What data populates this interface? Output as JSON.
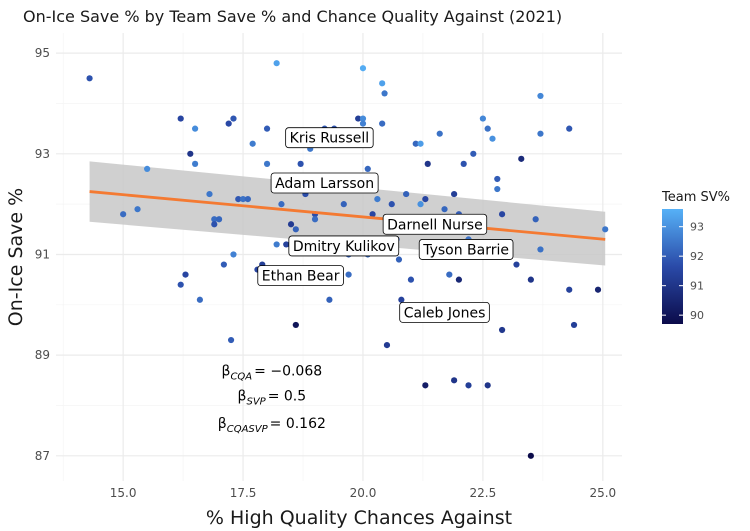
{
  "colors": {
    "low": "#0b0b4a",
    "mid": "#2a4aa8",
    "high": "#56b1f7",
    "trend": "#f47a32",
    "band": "#c8c8c8",
    "grid_major": "#ebebeb",
    "grid_minor": "#f4f4f4"
  },
  "chart_data": {
    "type": "scatter",
    "title": "On-Ice Save % by Team Save % and Chance Quality Against (2021)",
    "xlabel": "% High Quality Chances Against",
    "ylabel": "On-Ice Save %",
    "xlim": [
      13.6,
      25.4
    ],
    "ylim": [
      86.5,
      95.4
    ],
    "x_ticks": [
      15.0,
      17.5,
      20.0,
      22.5,
      25.0
    ],
    "x_tick_labels": [
      "15.0",
      "17.5",
      "20.0",
      "22.5",
      "25.0"
    ],
    "y_ticks": [
      87,
      89,
      91,
      93,
      95
    ],
    "y_tick_labels": [
      "87",
      "89",
      "91",
      "93",
      "95"
    ],
    "grid": true,
    "legend": {
      "title": "Team SV%",
      "position": "right",
      "range": [
        89.7,
        93.6
      ],
      "ticks": [
        90,
        91,
        92,
        93
      ],
      "tick_labels": [
        "90",
        "91",
        "92",
        "93"
      ]
    },
    "trend": {
      "x": [
        14.3,
        25.05
      ],
      "y": [
        92.25,
        91.3
      ],
      "band_upper": [
        92.85,
        91.85
      ],
      "band_lower": [
        91.65,
        90.78
      ]
    },
    "annotations": [
      {
        "base": "β",
        "sub": "CQA",
        "text": "= −0.068",
        "x": 18.1,
        "y": 88.7
      },
      {
        "base": "β",
        "sub": "SVP",
        "text": "= 0.5",
        "x": 18.1,
        "y": 88.2
      },
      {
        "base": "β",
        "sub": "CQASVP",
        "text": "= 0.162",
        "x": 18.1,
        "y": 87.65
      }
    ],
    "labels": [
      {
        "name": "Kris Russell",
        "x": 19.3,
        "y": 93.32
      },
      {
        "name": "Adam Larsson",
        "x": 19.2,
        "y": 92.42
      },
      {
        "name": "Darnell Nurse",
        "x": 21.5,
        "y": 91.6
      },
      {
        "name": "Dmitry Kulikov",
        "x": 19.6,
        "y": 91.17
      },
      {
        "name": "Tyson Barrie",
        "x": 22.15,
        "y": 91.1
      },
      {
        "name": "Ethan Bear",
        "x": 18.7,
        "y": 90.58
      },
      {
        "name": "Caleb Jones",
        "x": 21.7,
        "y": 89.85
      }
    ],
    "points": [
      [
        14.3,
        94.5,
        91.8
      ],
      [
        15.0,
        91.8,
        92.3
      ],
      [
        15.3,
        91.9,
        92.5
      ],
      [
        15.5,
        92.7,
        92.9
      ],
      [
        16.2,
        93.7,
        91.5
      ],
      [
        16.3,
        90.6,
        91.5
      ],
      [
        16.2,
        90.4,
        91.8
      ],
      [
        16.5,
        93.5,
        92.9
      ],
      [
        16.4,
        93.0,
        91.0
      ],
      [
        16.5,
        92.8,
        92.6
      ],
      [
        16.6,
        90.1,
        92.3
      ],
      [
        16.8,
        92.2,
        92.5
      ],
      [
        16.9,
        91.7,
        92.3
      ],
      [
        16.9,
        91.6,
        91.8
      ],
      [
        17.0,
        91.7,
        92.2
      ],
      [
        17.1,
        90.8,
        92.0
      ],
      [
        17.2,
        93.6,
        91.6
      ],
      [
        17.3,
        93.7,
        91.9
      ],
      [
        17.25,
        89.3,
        92.0
      ],
      [
        17.3,
        91.0,
        92.7
      ],
      [
        17.4,
        92.1,
        91.9
      ],
      [
        17.5,
        92.1,
        92.4
      ],
      [
        17.6,
        92.1,
        92.2
      ],
      [
        17.7,
        93.2,
        92.6
      ],
      [
        17.8,
        90.7,
        91.5
      ],
      [
        17.9,
        90.8,
        91.3
      ],
      [
        18.0,
        92.8,
        92.5
      ],
      [
        18.0,
        93.5,
        92.0
      ],
      [
        18.2,
        94.8,
        93.3
      ],
      [
        18.2,
        91.2,
        92.6
      ],
      [
        18.3,
        92.0,
        92.3
      ],
      [
        18.4,
        91.2,
        91.4
      ],
      [
        18.5,
        90.5,
        91.9
      ],
      [
        18.5,
        91.6,
        91.2
      ],
      [
        18.6,
        89.6,
        90.0
      ],
      [
        18.6,
        91.5,
        92.1
      ],
      [
        18.7,
        93.3,
        91.4
      ],
      [
        18.7,
        92.8,
        91.8
      ],
      [
        18.8,
        92.2,
        91.7
      ],
      [
        18.9,
        93.1,
        92.5
      ],
      [
        19.0,
        91.8,
        91.7
      ],
      [
        19.0,
        91.7,
        92.3
      ],
      [
        19.2,
        93.5,
        91.9
      ],
      [
        19.2,
        91.3,
        92.1
      ],
      [
        19.3,
        90.1,
        92.1
      ],
      [
        19.4,
        93.5,
        91.8
      ],
      [
        19.5,
        91.2,
        92.4
      ],
      [
        19.6,
        92.0,
        92.1
      ],
      [
        19.7,
        90.6,
        92.3
      ],
      [
        19.7,
        91.0,
        92.0
      ],
      [
        19.8,
        93.2,
        92.1
      ],
      [
        19.9,
        93.7,
        91.3
      ],
      [
        20.0,
        94.7,
        93.5
      ],
      [
        20.0,
        93.7,
        92.9
      ],
      [
        20.0,
        93.6,
        92.7
      ],
      [
        20.1,
        92.7,
        92.2
      ],
      [
        20.1,
        91.0,
        92.3
      ],
      [
        20.2,
        91.8,
        91.5
      ],
      [
        20.3,
        92.1,
        92.6
      ],
      [
        20.4,
        94.4,
        93.3
      ],
      [
        20.45,
        94.2,
        92.5
      ],
      [
        20.4,
        93.6,
        92.3
      ],
      [
        20.5,
        89.2,
        91.2
      ],
      [
        20.6,
        92.0,
        91.8
      ],
      [
        20.7,
        91.3,
        92.0
      ],
      [
        20.75,
        90.9,
        92.1
      ],
      [
        20.8,
        90.1,
        91.4
      ],
      [
        20.9,
        92.2,
        92.1
      ],
      [
        21.0,
        90.5,
        91.8
      ],
      [
        21.1,
        93.2,
        92.2
      ],
      [
        21.2,
        93.2,
        93.2
      ],
      [
        21.2,
        92.0,
        93.0
      ],
      [
        21.25,
        91.5,
        92.0
      ],
      [
        21.3,
        92.1,
        91.5
      ],
      [
        21.35,
        92.8,
        91.0
      ],
      [
        21.5,
        91.2,
        91.7
      ],
      [
        21.6,
        93.4,
        92.4
      ],
      [
        21.7,
        91.9,
        92.2
      ],
      [
        21.8,
        90.6,
        92.3
      ],
      [
        21.9,
        92.2,
        91.3
      ],
      [
        22.0,
        90.5,
        90.6
      ],
      [
        22.0,
        91.8,
        92.0
      ],
      [
        22.1,
        92.8,
        91.8
      ],
      [
        22.2,
        91.3,
        92.4
      ],
      [
        22.3,
        93.0,
        92.0
      ],
      [
        22.5,
        93.7,
        92.8
      ],
      [
        22.6,
        93.5,
        92.4
      ],
      [
        22.7,
        93.3,
        93.0
      ],
      [
        22.8,
        92.5,
        92.0
      ],
      [
        22.9,
        91.8,
        91.5
      ],
      [
        22.8,
        92.3,
        92.5
      ],
      [
        22.9,
        89.5,
        91.1
      ],
      [
        23.2,
        90.8,
        91.4
      ],
      [
        23.3,
        92.9,
        90.7
      ],
      [
        23.5,
        90.5,
        91.0
      ],
      [
        23.5,
        87.0,
        89.7
      ],
      [
        23.6,
        91.7,
        92.1
      ],
      [
        23.7,
        91.1,
        92.4
      ],
      [
        23.7,
        93.4,
        92.5
      ],
      [
        23.7,
        94.15,
        92.8
      ],
      [
        24.3,
        90.3,
        91.4
      ],
      [
        24.3,
        93.5,
        91.9
      ],
      [
        24.4,
        89.6,
        91.3
      ],
      [
        24.9,
        90.3,
        90.5
      ],
      [
        25.05,
        91.5,
        92.5
      ],
      [
        21.3,
        88.4,
        90.3
      ],
      [
        21.9,
        88.5,
        91.0
      ],
      [
        22.2,
        88.4,
        91.3
      ],
      [
        22.6,
        88.4,
        91.0
      ]
    ]
  }
}
